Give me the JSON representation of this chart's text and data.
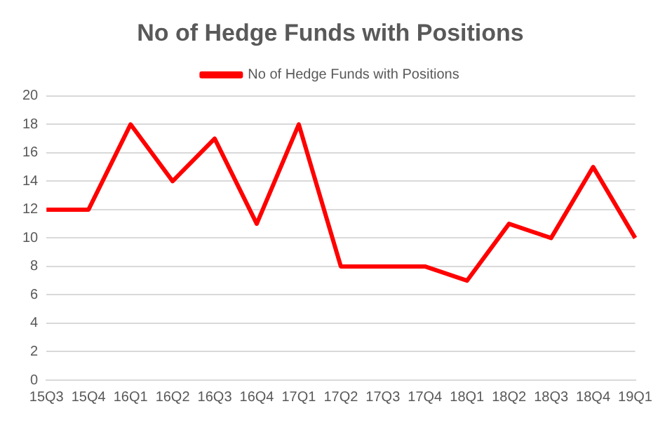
{
  "chart_data": {
    "type": "line",
    "title": "No of Hedge Funds with Positions",
    "categories": [
      "15Q3",
      "15Q4",
      "16Q1",
      "16Q2",
      "16Q3",
      "16Q4",
      "17Q1",
      "17Q2",
      "17Q3",
      "17Q4",
      "18Q1",
      "18Q2",
      "18Q3",
      "18Q4",
      "19Q1"
    ],
    "series": [
      {
        "name": "No of Hedge Funds with Positions",
        "color": "#ff0000",
        "values": [
          12,
          12,
          18,
          14,
          17,
          11,
          18,
          8,
          8,
          8,
          7,
          11,
          10,
          15,
          10
        ]
      }
    ],
    "ylim": [
      0,
      20
    ],
    "yticks": [
      0,
      2,
      4,
      6,
      8,
      10,
      12,
      14,
      16,
      18,
      20
    ],
    "grid": "y",
    "legend": "top",
    "marker": "none",
    "line_style": "solid"
  }
}
